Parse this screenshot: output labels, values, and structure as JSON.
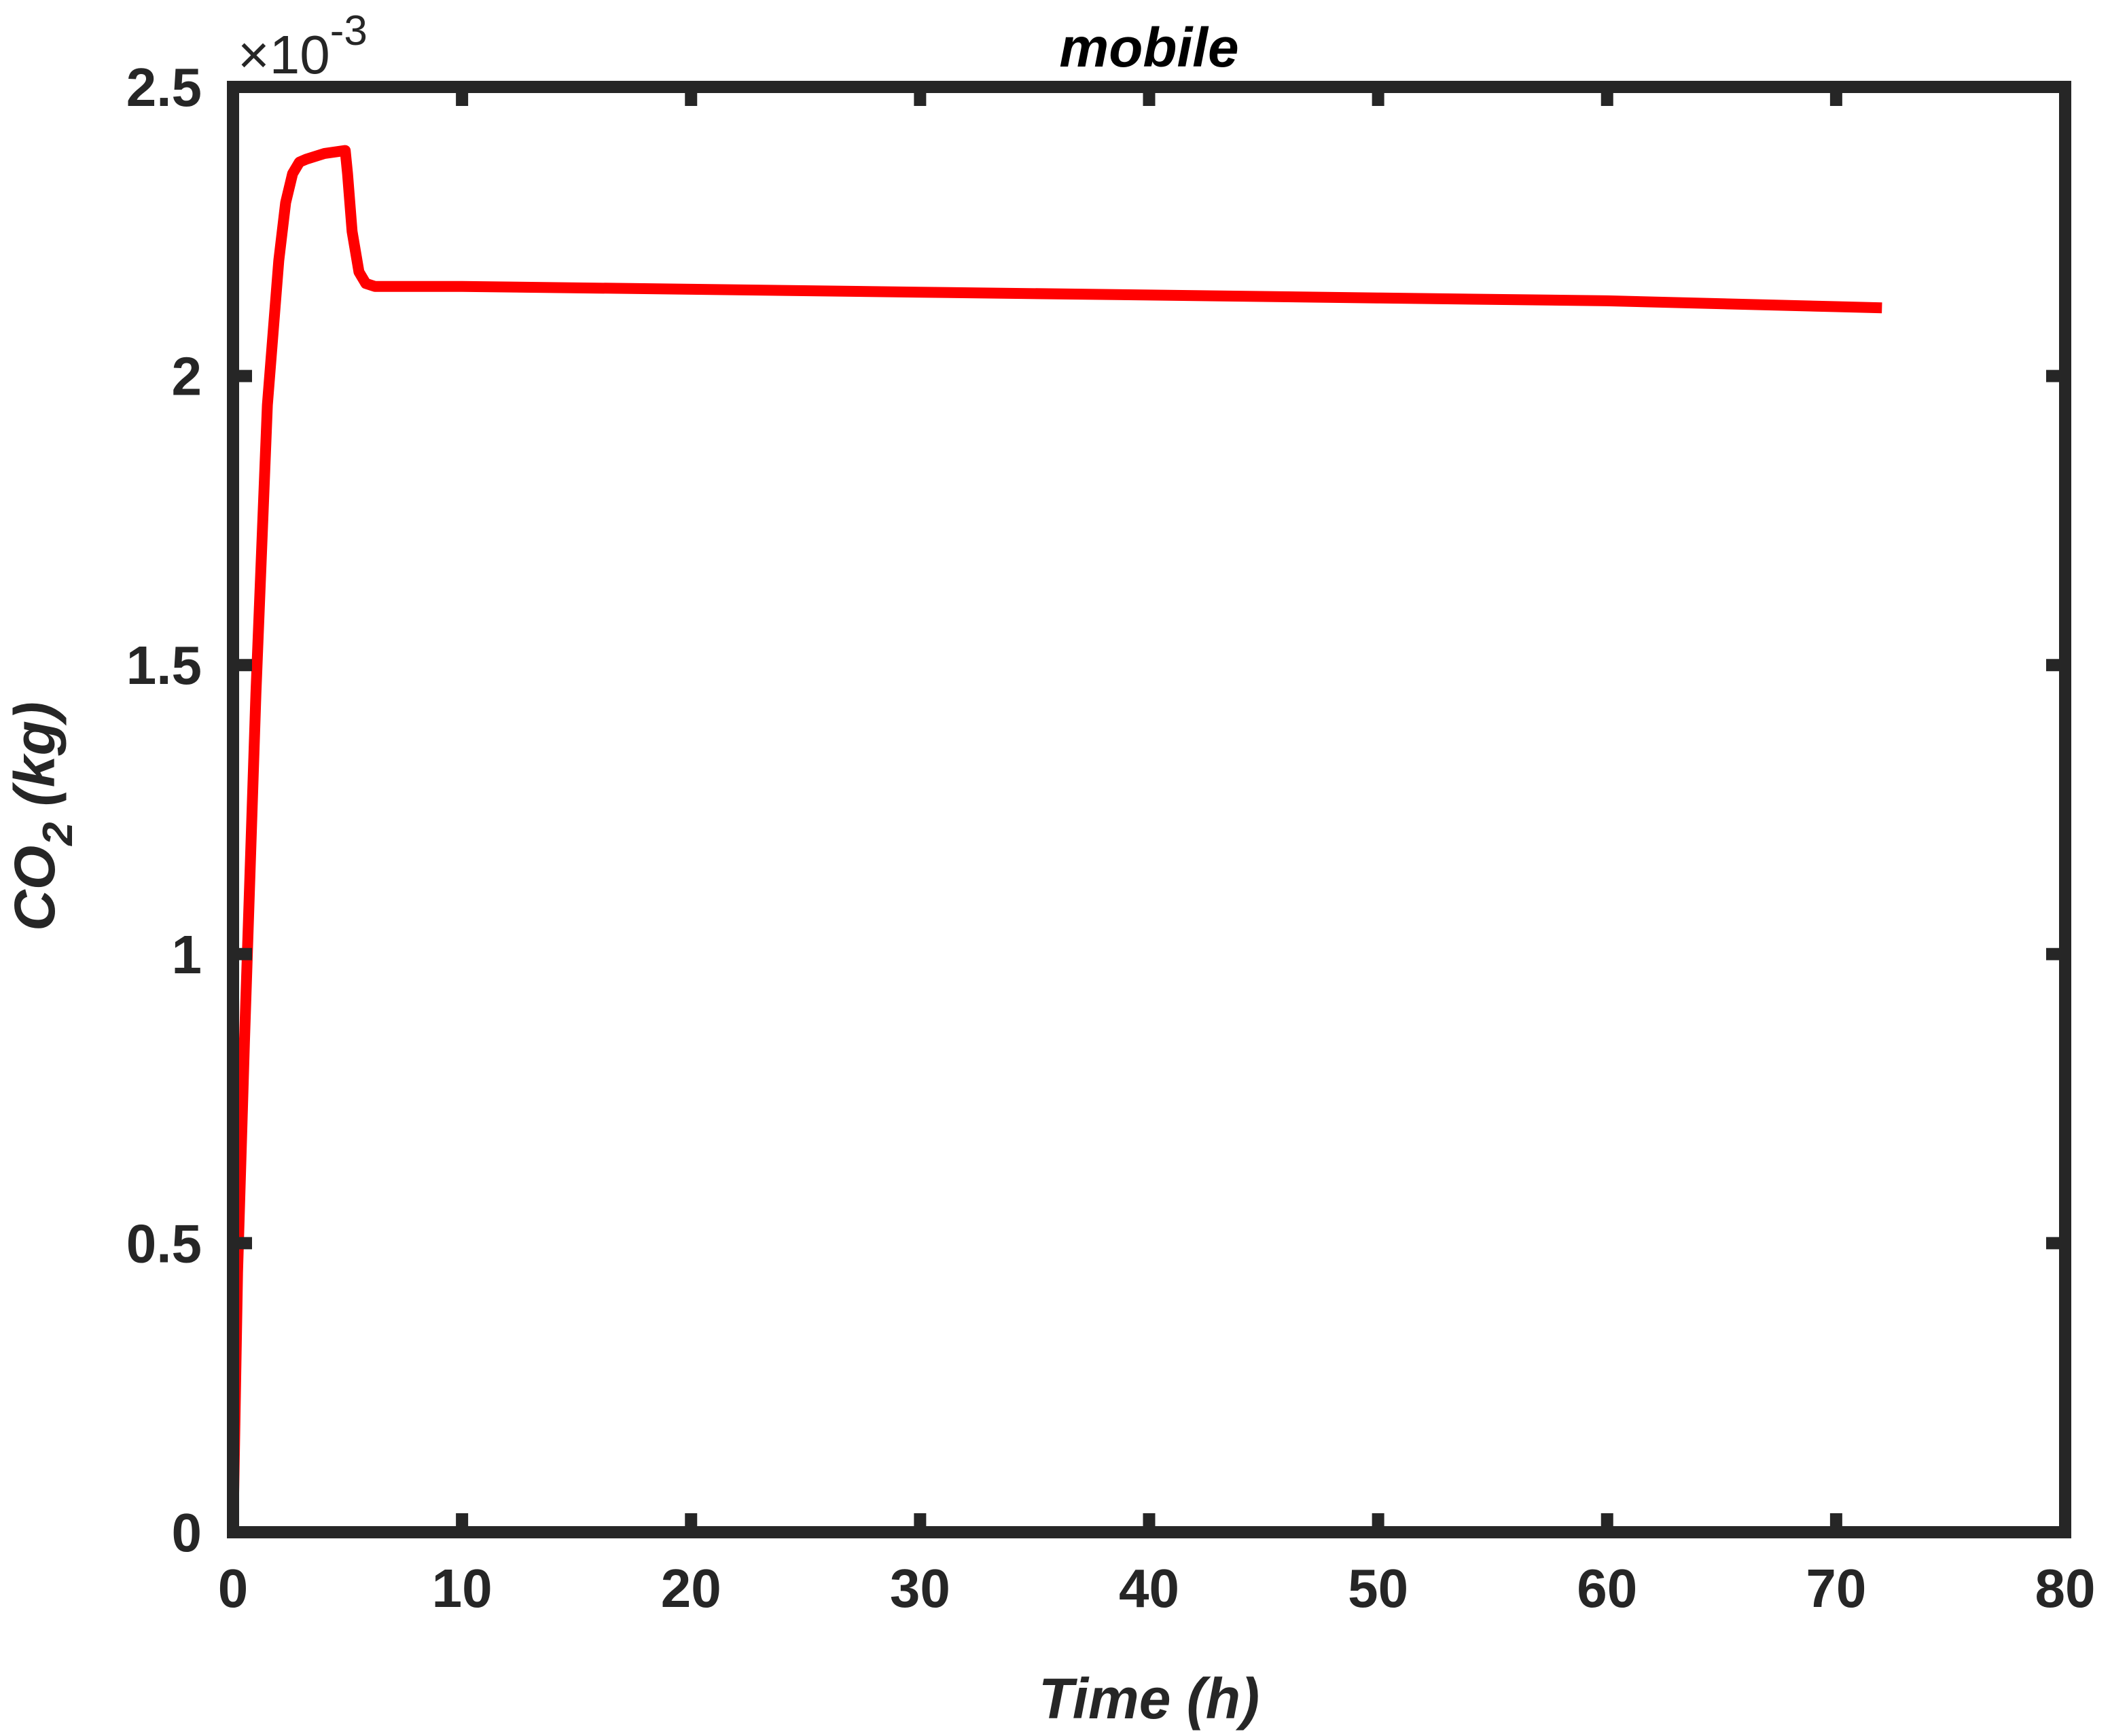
{
  "chart_data": {
    "type": "line",
    "title": "mobile",
    "xlabel": "Time (h)",
    "ylabel": {
      "main": "CO",
      "subscript": "2",
      "unit": " (kg)"
    },
    "y_exponent": {
      "prefix": "×10",
      "power": "-3"
    },
    "xlim": [
      0,
      80
    ],
    "ylim": [
      0,
      2.5
    ],
    "x_ticks": [
      0,
      10,
      20,
      30,
      40,
      50,
      60,
      70,
      80
    ],
    "x_tick_labels": [
      "0",
      "10",
      "20",
      "30",
      "40",
      "50",
      "60",
      "70",
      "80"
    ],
    "y_ticks": [
      0,
      0.5,
      1,
      1.5,
      2,
      2.5
    ],
    "y_tick_labels": [
      "0",
      "0.5",
      "1",
      "1.5",
      "2",
      "2.5"
    ],
    "grid": false,
    "series": [
      {
        "color": "#ff0000",
        "x": [
          0,
          0.2,
          0.5,
          1.0,
          1.5,
          2.0,
          2.3,
          2.6,
          2.9,
          3.2,
          4.0,
          4.9,
          5.0,
          5.2,
          5.5,
          5.8,
          6.2,
          7.0,
          10,
          20,
          30,
          40,
          50,
          60,
          70,
          72
        ],
        "y": [
          0,
          0.45,
          0.85,
          1.45,
          1.95,
          2.2,
          2.3,
          2.35,
          2.37,
          2.375,
          2.385,
          2.39,
          2.35,
          2.25,
          2.18,
          2.16,
          2.155,
          2.155,
          2.155,
          2.15,
          2.145,
          2.14,
          2.135,
          2.13,
          2.12,
          2.118
        ]
      }
    ],
    "colors": {
      "axes": "#262626",
      "line": "#ff0000"
    }
  }
}
